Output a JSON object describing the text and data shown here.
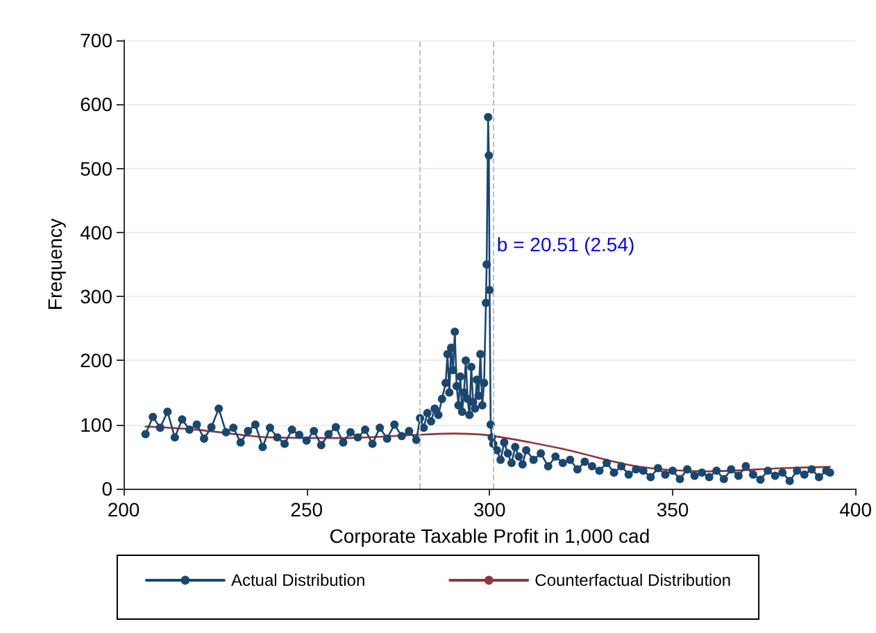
{
  "chart_data": {
    "type": "line",
    "xlabel": "Corporate Taxable Profit in 1,000 cad",
    "ylabel": "Frequency",
    "xlim": [
      200,
      400
    ],
    "xticks": [
      200,
      250,
      300,
      350,
      400
    ],
    "ylim": [
      0,
      700
    ],
    "yticks": [
      0,
      100,
      200,
      300,
      400,
      500,
      600,
      700
    ],
    "grid": "y",
    "legend": "bottom",
    "ref_lines": [
      {
        "axis": "x",
        "value": 281,
        "color": "#c0c0c0",
        "line_style": "dashed"
      },
      {
        "axis": "x",
        "value": 301,
        "color": "#c0c0c0",
        "line_style": "dashed"
      }
    ],
    "annotations": [
      {
        "text": "b = 20.51 (2.54)",
        "x": 302,
        "y": 379
      }
    ],
    "series": [
      {
        "name": "Actual Distribution",
        "color": "#1a476f",
        "marker": "circle",
        "x": [
          206,
          208,
          210,
          212,
          214,
          216,
          218,
          220,
          222,
          224,
          226,
          228,
          230,
          232,
          234,
          236,
          238,
          240,
          242,
          244,
          246,
          248,
          250,
          252,
          254,
          256,
          258,
          260,
          262,
          264,
          266,
          268,
          270,
          272,
          274,
          276,
          278,
          280,
          281,
          282,
          283,
          284,
          285,
          286,
          287,
          288,
          288.5,
          289,
          289.5,
          290,
          290.5,
          291,
          291.5,
          292,
          292.5,
          293,
          293.5,
          294,
          294.5,
          295,
          295.5,
          296,
          296.5,
          297,
          297.5,
          298,
          298.5,
          299,
          299.2,
          299.6,
          299.8,
          300,
          300.3,
          300.6,
          301,
          302,
          303,
          304,
          305,
          306,
          307,
          308,
          309,
          310,
          312,
          314,
          316,
          318,
          320,
          322,
          324,
          326,
          328,
          330,
          332,
          334,
          336,
          338,
          340,
          342,
          344,
          346,
          348,
          350,
          352,
          354,
          356,
          358,
          360,
          362,
          364,
          366,
          368,
          370,
          372,
          374,
          376,
          378,
          380,
          382,
          384,
          386,
          388,
          390,
          392,
          393
        ],
        "values": [
          85,
          112,
          95,
          120,
          80,
          108,
          92,
          100,
          78,
          96,
          125,
          88,
          95,
          72,
          90,
          100,
          65,
          95,
          80,
          70,
          92,
          84,
          75,
          90,
          68,
          85,
          96,
          72,
          88,
          80,
          92,
          70,
          95,
          78,
          100,
          82,
          90,
          76,
          110,
          95,
          118,
          105,
          125,
          115,
          140,
          165,
          210,
          150,
          220,
          185,
          245,
          160,
          130,
          175,
          120,
          150,
          200,
          140,
          115,
          190,
          135,
          125,
          170,
          145,
          210,
          130,
          165,
          290,
          350,
          580,
          520,
          310,
          100,
          80,
          70,
          60,
          45,
          72,
          55,
          40,
          65,
          50,
          38,
          60,
          45,
          55,
          35,
          50,
          40,
          45,
          30,
          42,
          35,
          28,
          40,
          25,
          35,
          22,
          30,
          28,
          18,
          32,
          22,
          28,
          15,
          30,
          20,
          25,
          18,
          28,
          15,
          30,
          20,
          35,
          22,
          14,
          28,
          20,
          25,
          12,
          28,
          22,
          30,
          18,
          28,
          25
        ]
      },
      {
        "name": "Counterfactual Distribution",
        "color": "#90353b",
        "marker": "none",
        "x": [
          206,
          220,
          240,
          260,
          280,
          290,
          300,
          320,
          340,
          360,
          380,
          393
        ],
        "values": [
          97,
          92,
          80,
          79,
          84,
          86,
          83,
          62,
          35,
          27,
          32,
          34
        ]
      }
    ]
  }
}
